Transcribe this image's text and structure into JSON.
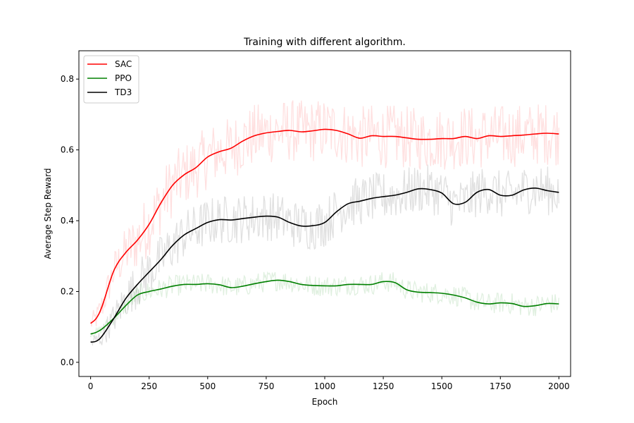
{
  "chart_data": {
    "type": "line",
    "title": "Training with different algorithm.",
    "xlabel": "Epoch",
    "ylabel": "Average Step Reward",
    "xlim": [
      -50,
      2050
    ],
    "ylim": [
      -0.04,
      0.88
    ],
    "xticks": [
      0,
      250,
      500,
      750,
      1000,
      1250,
      1500,
      1750,
      2000
    ],
    "xtick_labels": [
      "0",
      "250",
      "500",
      "750",
      "1000",
      "1250",
      "1500",
      "1750",
      "2000"
    ],
    "yticks": [
      0.0,
      0.2,
      0.4,
      0.6,
      0.8
    ],
    "ytick_labels": [
      "0.0",
      "0.2",
      "0.4",
      "0.6",
      "0.8"
    ],
    "grid": false,
    "legend_position": "top-left",
    "series": [
      {
        "name": "SAC",
        "color": "#ff0000",
        "x": [
          0,
          25,
          50,
          100,
          150,
          200,
          250,
          300,
          350,
          400,
          450,
          500,
          550,
          600,
          650,
          700,
          750,
          800,
          850,
          900,
          950,
          1000,
          1050,
          1100,
          1150,
          1200,
          1250,
          1300,
          1350,
          1400,
          1450,
          1500,
          1550,
          1600,
          1650,
          1700,
          1750,
          1800,
          1850,
          1900,
          1950,
          2000
        ],
        "values": [
          0.11,
          0.125,
          0.16,
          0.26,
          0.31,
          0.345,
          0.39,
          0.45,
          0.5,
          0.53,
          0.55,
          0.58,
          0.595,
          0.605,
          0.625,
          0.64,
          0.648,
          0.652,
          0.655,
          0.651,
          0.654,
          0.658,
          0.655,
          0.645,
          0.633,
          0.64,
          0.638,
          0.638,
          0.634,
          0.63,
          0.63,
          0.632,
          0.632,
          0.638,
          0.632,
          0.64,
          0.638,
          0.64,
          0.642,
          0.645,
          0.647,
          0.645
        ],
        "noise": 0.09
      },
      {
        "name": "PPO",
        "color": "#008000",
        "x": [
          0,
          25,
          50,
          100,
          150,
          200,
          250,
          300,
          350,
          400,
          450,
          500,
          550,
          600,
          650,
          700,
          750,
          800,
          850,
          900,
          950,
          1000,
          1050,
          1100,
          1150,
          1200,
          1250,
          1300,
          1350,
          1400,
          1450,
          1500,
          1550,
          1600,
          1650,
          1700,
          1750,
          1800,
          1850,
          1900,
          1950,
          2000
        ],
        "values": [
          0.08,
          0.085,
          0.095,
          0.125,
          0.16,
          0.19,
          0.2,
          0.207,
          0.215,
          0.22,
          0.22,
          0.222,
          0.219,
          0.211,
          0.215,
          0.222,
          0.228,
          0.232,
          0.228,
          0.22,
          0.217,
          0.216,
          0.216,
          0.22,
          0.22,
          0.22,
          0.228,
          0.225,
          0.205,
          0.198,
          0.197,
          0.195,
          0.19,
          0.182,
          0.17,
          0.165,
          0.168,
          0.166,
          0.158,
          0.16,
          0.166,
          0.165
        ],
        "noise": 0.03
      },
      {
        "name": "TD3",
        "color": "#000000",
        "x": [
          0,
          25,
          50,
          100,
          150,
          200,
          250,
          300,
          350,
          400,
          450,
          500,
          550,
          600,
          650,
          700,
          750,
          800,
          850,
          900,
          950,
          1000,
          1050,
          1100,
          1150,
          1200,
          1250,
          1300,
          1350,
          1400,
          1450,
          1500,
          1550,
          1600,
          1650,
          1700,
          1750,
          1800,
          1850,
          1900,
          1950,
          2000
        ],
        "values": [
          0.057,
          0.06,
          0.075,
          0.125,
          0.18,
          0.22,
          0.255,
          0.29,
          0.33,
          0.36,
          0.378,
          0.395,
          0.403,
          0.402,
          0.406,
          0.41,
          0.413,
          0.41,
          0.395,
          0.385,
          0.386,
          0.395,
          0.425,
          0.448,
          0.455,
          0.463,
          0.468,
          0.472,
          0.48,
          0.49,
          0.488,
          0.478,
          0.448,
          0.452,
          0.48,
          0.488,
          0.472,
          0.472,
          0.487,
          0.492,
          0.485,
          0.48
        ],
        "noise": 0.07
      }
    ]
  }
}
